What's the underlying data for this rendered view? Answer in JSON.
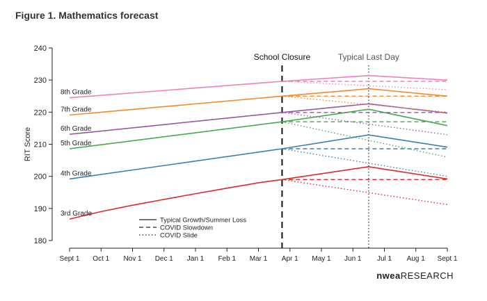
{
  "figure_title": "Figure 1. Mathematics forecast",
  "brand": {
    "name": "nwea",
    "suffix": "RESEARCH"
  },
  "chart_data": {
    "type": "line",
    "title": "Figure 1. Mathematics forecast",
    "xlabel": "",
    "ylabel": "RIT Score",
    "ylim": [
      180,
      240
    ],
    "yticks": [
      180,
      190,
      200,
      210,
      220,
      230,
      240
    ],
    "xticks": [
      "Sept 1",
      "Oct 1",
      "Nov 1",
      "Dec 1",
      "Jan 1",
      "Feb 1",
      "Mar 1",
      "Apr 1",
      "May 1",
      "Jun 1",
      "Jul 1",
      "Aug 1",
      "Sept 1"
    ],
    "grid": false,
    "legend": {
      "placement": "bottom-left",
      "entries": [
        {
          "label": "Typical Growth/Summer Loss",
          "style": "solid"
        },
        {
          "label": "COVID Slowdown",
          "style": "dashed"
        },
        {
          "label": "COVID Slide",
          "style": "dotted"
        }
      ]
    },
    "annotations": [
      {
        "label": "School Closure",
        "x": 6.75,
        "style": "dashed"
      },
      {
        "label": "Typical Last Day",
        "x": 9.5,
        "style": "dotted"
      }
    ],
    "series": [
      {
        "name": "3rd Grade",
        "color": "#d62b2b",
        "typical": [
          [
            0,
            186.7
          ],
          [
            1,
            189.0
          ],
          [
            2,
            191.0
          ],
          [
            3,
            192.8
          ],
          [
            4,
            194.6
          ],
          [
            5,
            196.3
          ],
          [
            6,
            198.0
          ],
          [
            6.75,
            199.0
          ],
          [
            9.5,
            203.0
          ],
          [
            12,
            199.2
          ]
        ],
        "slowdown": [
          [
            6.75,
            199.0
          ],
          [
            12,
            199.0
          ]
        ],
        "slide": [
          [
            6.75,
            199.0
          ],
          [
            12,
            191.2
          ]
        ]
      },
      {
        "name": "4th Grade",
        "color": "#3a7db3",
        "typical": [
          [
            0,
            199.2
          ],
          [
            6.75,
            208.6
          ],
          [
            9.5,
            212.9
          ],
          [
            12,
            209.1
          ]
        ],
        "slowdown": [
          [
            6.75,
            208.6
          ],
          [
            12,
            208.6
          ]
        ],
        "slide": [
          [
            6.75,
            208.6
          ],
          [
            12,
            200.0
          ]
        ]
      },
      {
        "name": "5th Grade",
        "color": "#46a84d",
        "typical": [
          [
            0,
            208.6
          ],
          [
            6.75,
            217.0
          ],
          [
            9.5,
            220.9
          ],
          [
            12,
            215.8
          ]
        ],
        "slowdown": [
          [
            6.75,
            217.0
          ],
          [
            12,
            217.0
          ]
        ],
        "slide": [
          [
            6.75,
            217.0
          ],
          [
            12,
            206.0
          ]
        ]
      },
      {
        "name": "6th Grade",
        "color": "#9b56a8",
        "typical": [
          [
            0,
            213.1
          ],
          [
            6.75,
            219.9
          ],
          [
            9.5,
            222.6
          ],
          [
            12,
            219.7
          ]
        ],
        "slowdown": [
          [
            6.75,
            219.9
          ],
          [
            12,
            219.9
          ]
        ],
        "slide": [
          [
            6.75,
            219.9
          ],
          [
            12,
            213.0
          ]
        ]
      },
      {
        "name": "7th Grade",
        "color": "#ef8a2e",
        "typical": [
          [
            0,
            219.1
          ],
          [
            6.75,
            225.0
          ],
          [
            9.5,
            227.3
          ],
          [
            12,
            225.0
          ]
        ],
        "slowdown": [
          [
            6.75,
            225.0
          ],
          [
            12,
            225.0
          ]
        ],
        "slide": [
          [
            6.75,
            225.0
          ],
          [
            12,
            220.0
          ]
        ]
      },
      {
        "name": "8th Grade",
        "color": "#f07fba",
        "typical": [
          [
            0,
            224.5
          ],
          [
            6.75,
            229.6
          ],
          [
            9.5,
            231.4
          ],
          [
            12,
            230.0
          ]
        ],
        "slowdown": [
          [
            6.75,
            229.6
          ],
          [
            12,
            229.6
          ]
        ],
        "slide": [
          [
            6.75,
            229.6
          ],
          [
            12,
            227.0
          ]
        ]
      }
    ]
  }
}
